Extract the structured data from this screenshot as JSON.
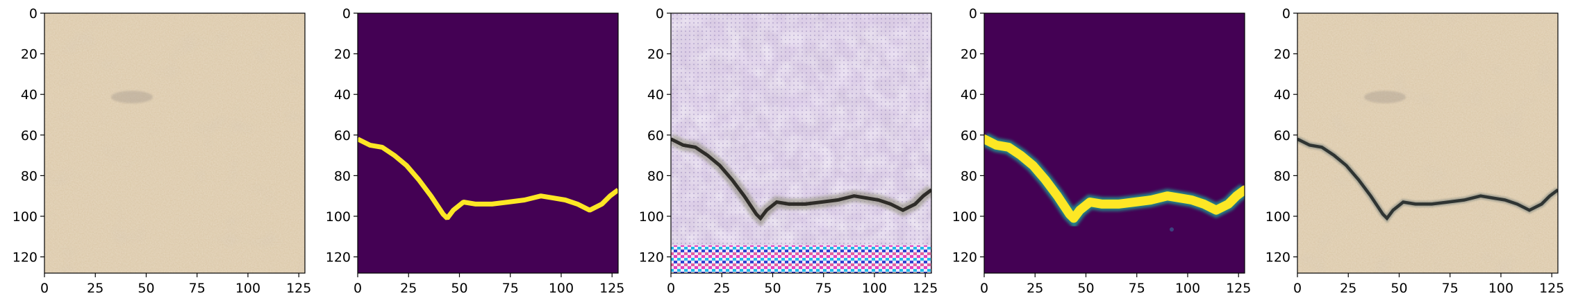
{
  "figure": {
    "panel_count": 5,
    "axes": {
      "x_ticks": [
        0,
        25,
        50,
        75,
        100,
        125
      ],
      "y_ticks": [
        0,
        20,
        40,
        60,
        80,
        100,
        120
      ],
      "xlim": [
        0,
        128
      ],
      "ylim": [
        128,
        0
      ]
    },
    "panels": [
      {
        "id": "panel-1",
        "content": "sand-texture-crack-input"
      },
      {
        "id": "panel-2",
        "content": "binary-crack-mask"
      },
      {
        "id": "panel-3",
        "content": "generated-crack-image-with-artifacts"
      },
      {
        "id": "panel-4",
        "content": "predicted-crack-probability-map"
      },
      {
        "id": "panel-5",
        "content": "sand-texture-crack-overlay"
      }
    ],
    "colors": {
      "sand_light": "#d8c3a1",
      "sand_dark": "#b79f7d",
      "mask_background": "#440154",
      "mask_foreground": "#fde725",
      "mask_edge": "#21918c",
      "crack_dark": "#2e2c28"
    }
  }
}
